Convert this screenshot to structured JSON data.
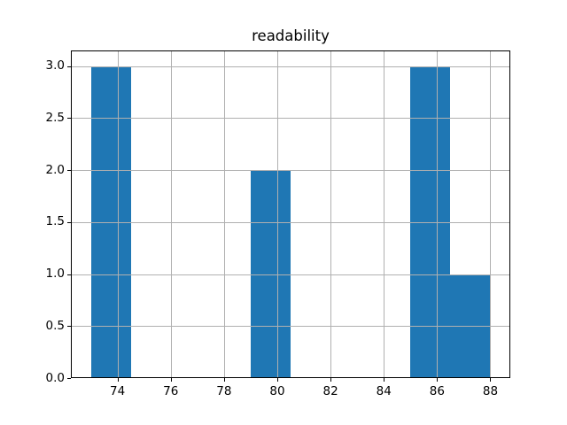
{
  "chart_data": {
    "type": "bar",
    "subtype": "histogram",
    "title": "readability",
    "xlabel": "",
    "ylabel": "",
    "bins": {
      "edges": [
        73.0,
        74.5,
        76.0,
        77.5,
        79.0,
        80.5,
        82.0,
        83.5,
        85.0,
        86.5,
        88.0
      ],
      "counts": [
        3,
        0,
        0,
        0,
        2,
        0,
        0,
        0,
        3,
        1
      ]
    },
    "xlim": [
      72.25,
      88.75
    ],
    "ylim": [
      0,
      3.15
    ],
    "xticks": [
      74,
      76,
      78,
      80,
      82,
      84,
      86,
      88
    ],
    "xtick_labels": [
      "74",
      "76",
      "78",
      "80",
      "82",
      "84",
      "86",
      "88"
    ],
    "yticks": [
      0.0,
      0.5,
      1.0,
      1.5,
      2.0,
      2.5,
      3.0
    ],
    "ytick_labels": [
      "0.0",
      "0.5",
      "1.0",
      "1.5",
      "2.0",
      "2.5",
      "3.0"
    ],
    "grid": true,
    "grid_above_bars": true,
    "legend": null,
    "colors": {
      "bar": "#1f77b4",
      "grid": "#b0b0b0",
      "spine": "#000000",
      "background": "#ffffff",
      "text": "#000000"
    }
  }
}
